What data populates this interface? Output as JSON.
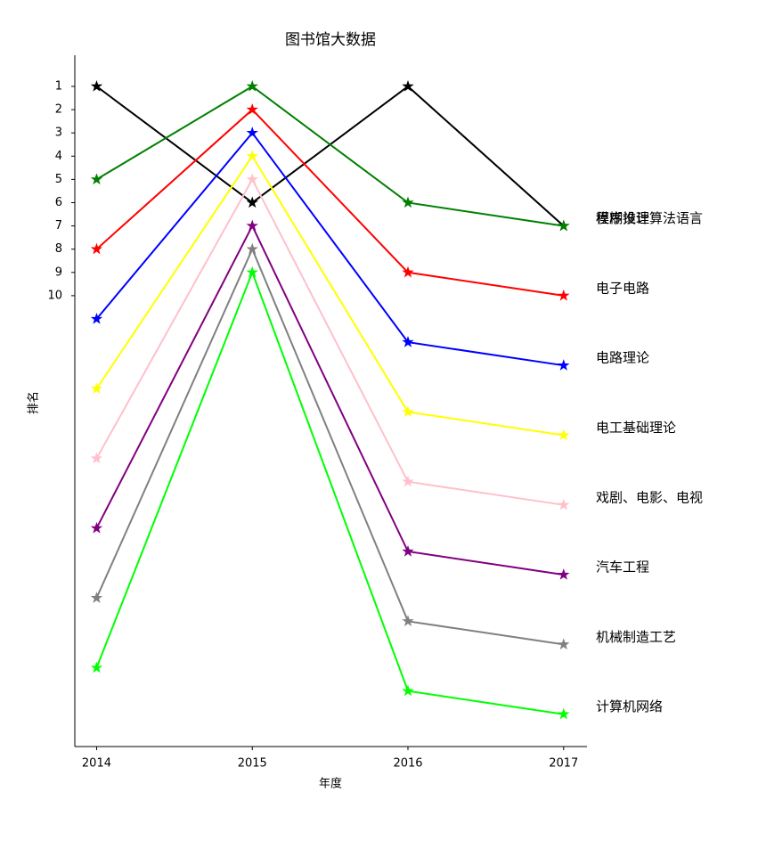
{
  "chart_data": {
    "type": "line",
    "title": "图书馆大数据",
    "x_label": "年度",
    "y_label": "排名",
    "x": [
      2014,
      2015,
      2016,
      2017
    ],
    "xlim": [
      2013.86,
      2017.15
    ],
    "xticks": [
      2014,
      2015,
      2016,
      2017
    ],
    "ylim": [
      29.39,
      -0.34
    ],
    "yticks": [
      1,
      2,
      3,
      4,
      5,
      6,
      7,
      8,
      9,
      10
    ],
    "series": [
      {
        "name": "模糊推理",
        "color": "#000000",
        "values": [
          1,
          6,
          1,
          7
        ]
      },
      {
        "name": "程序设计算法语言",
        "color": "#008000",
        "values": [
          5,
          1,
          6,
          7
        ]
      },
      {
        "name": "电子电路",
        "color": "#ff0000",
        "values": [
          8,
          2,
          9,
          10
        ]
      },
      {
        "name": "电路理论",
        "color": "#0000ff",
        "values": [
          11,
          3,
          12,
          13
        ]
      },
      {
        "name": "电工基础理论",
        "color": "#ffff00",
        "values": [
          14,
          4,
          15,
          16
        ]
      },
      {
        "name": "戏剧、电影、电视",
        "color": "#ffc0cb",
        "values": [
          17,
          5,
          18,
          19
        ]
      },
      {
        "name": "汽车工程",
        "color": "#800080",
        "values": [
          20,
          7,
          21,
          22
        ]
      },
      {
        "name": "机械制造工艺",
        "color": "#808080",
        "values": [
          23,
          8,
          24,
          25
        ]
      },
      {
        "name": "计算机网络",
        "color": "#00ff00",
        "values": [
          26,
          9,
          27,
          28
        ]
      }
    ]
  }
}
